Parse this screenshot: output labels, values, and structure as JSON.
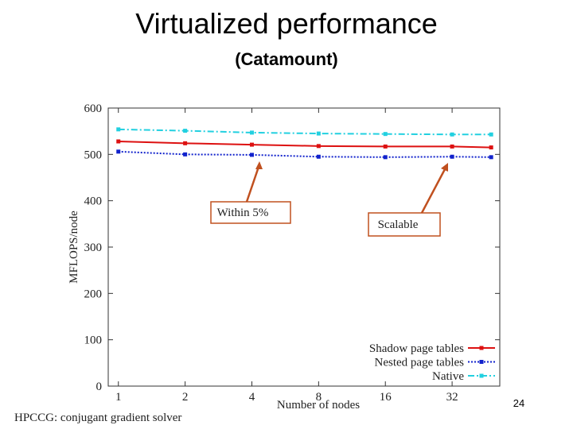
{
  "slide": {
    "title": "Virtualized performance",
    "subtitle": "(Catamount)",
    "footer": "HPCCG: conjugant gradient solver",
    "page_number": 24
  },
  "chart_data": {
    "type": "line",
    "xlabel": "Number of nodes",
    "ylabel": "MFLOPS/node",
    "x": [
      1,
      2,
      4,
      8,
      16,
      32,
      48
    ],
    "xscale": "log",
    "xlim": [
      0.9,
      52.5
    ],
    "xticks": [
      1,
      2,
      4,
      8,
      16,
      32
    ],
    "ylim": [
      0,
      600
    ],
    "yticks": [
      0,
      100,
      200,
      300,
      400,
      500,
      600
    ],
    "legend": "lower right",
    "series": [
      {
        "name": "Shadow page tables",
        "color": "#dd1111",
        "dash": "",
        "values": [
          528,
          524,
          521,
          518,
          517,
          517,
          515
        ]
      },
      {
        "name": "Nested page tables",
        "color": "#1122cc",
        "dash": "2 2",
        "values": [
          506,
          500,
          499,
          495,
          494,
          495,
          494
        ]
      },
      {
        "name": "Native",
        "color": "#22d0e0",
        "dash": "8 3 2 3",
        "values": [
          554,
          551,
          547,
          545,
          544,
          543,
          543
        ]
      }
    ],
    "annotations": [
      {
        "text": "Within 5%"
      },
      {
        "text": "Scalable"
      }
    ]
  }
}
